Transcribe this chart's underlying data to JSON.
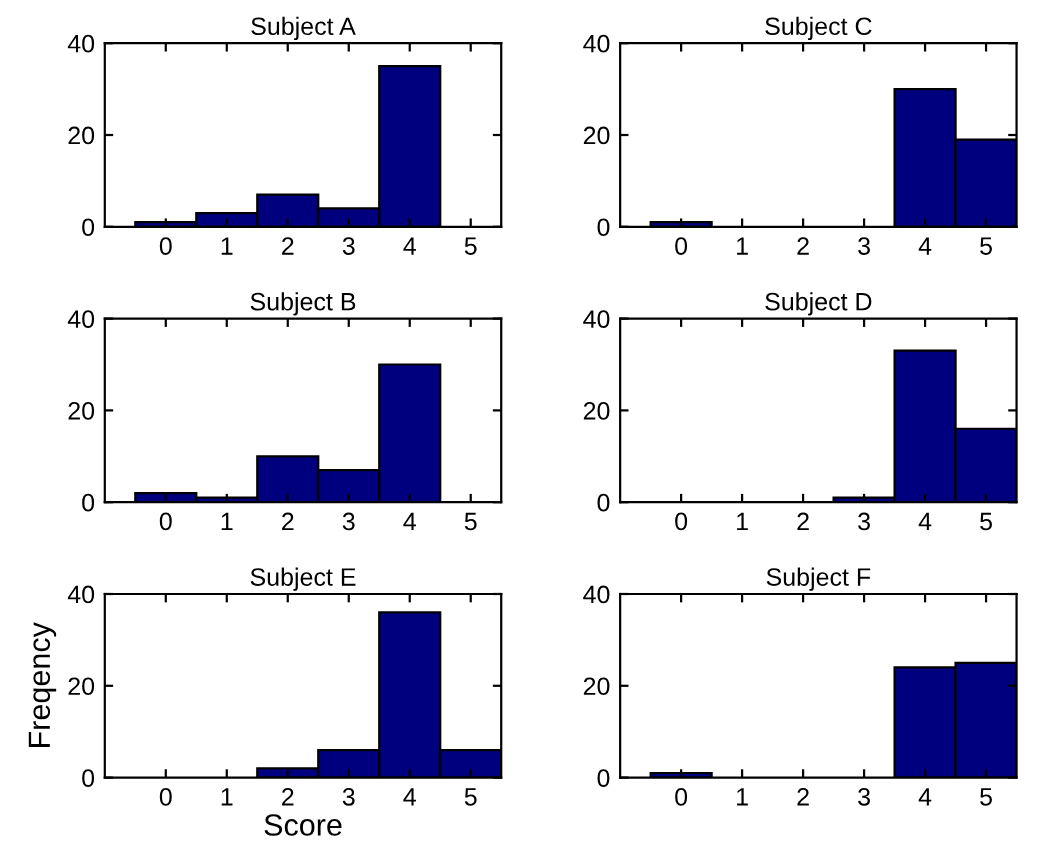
{
  "chart_data": [
    {
      "type": "bar",
      "title": "Subject A",
      "categories": [
        "0",
        "1",
        "2",
        "3",
        "4",
        "5"
      ],
      "values": [
        1,
        3,
        7,
        4,
        35,
        0
      ],
      "color": "#00007f",
      "ylim": [
        0,
        40
      ],
      "yticks": [
        0,
        20,
        40
      ],
      "grid": false
    },
    {
      "type": "bar",
      "title": "Subject C",
      "categories": [
        "0",
        "1",
        "2",
        "3",
        "4",
        "5"
      ],
      "values": [
        1,
        0,
        0,
        0,
        30,
        19
      ],
      "color": "#00007f",
      "ylim": [
        0,
        40
      ],
      "yticks": [
        0,
        20,
        40
      ],
      "grid": false
    },
    {
      "type": "bar",
      "title": "Subject B",
      "categories": [
        "0",
        "1",
        "2",
        "3",
        "4",
        "5"
      ],
      "values": [
        2,
        1,
        10,
        7,
        30,
        0
      ],
      "color": "#00007f",
      "ylim": [
        0,
        40
      ],
      "yticks": [
        0,
        20,
        40
      ],
      "grid": false
    },
    {
      "type": "bar",
      "title": "Subject D",
      "categories": [
        "0",
        "1",
        "2",
        "3",
        "4",
        "5"
      ],
      "values": [
        0,
        0,
        0,
        1,
        33,
        16
      ],
      "color": "#00007f",
      "ylim": [
        0,
        40
      ],
      "yticks": [
        0,
        20,
        40
      ],
      "grid": false
    },
    {
      "type": "bar",
      "title": "Subject E",
      "xlabel": "Score",
      "ylabel": "Freqency",
      "categories": [
        "0",
        "1",
        "2",
        "3",
        "4",
        "5"
      ],
      "values": [
        0,
        0,
        2,
        6,
        36,
        6
      ],
      "color": "#00007f",
      "ylim": [
        0,
        40
      ],
      "yticks": [
        0,
        20,
        40
      ],
      "grid": false
    },
    {
      "type": "bar",
      "title": "Subject F",
      "categories": [
        "0",
        "1",
        "2",
        "3",
        "4",
        "5"
      ],
      "values": [
        1,
        0,
        0,
        0,
        24,
        25
      ],
      "color": "#00007f",
      "ylim": [
        0,
        40
      ],
      "yticks": [
        0,
        20,
        40
      ],
      "grid": false
    }
  ]
}
